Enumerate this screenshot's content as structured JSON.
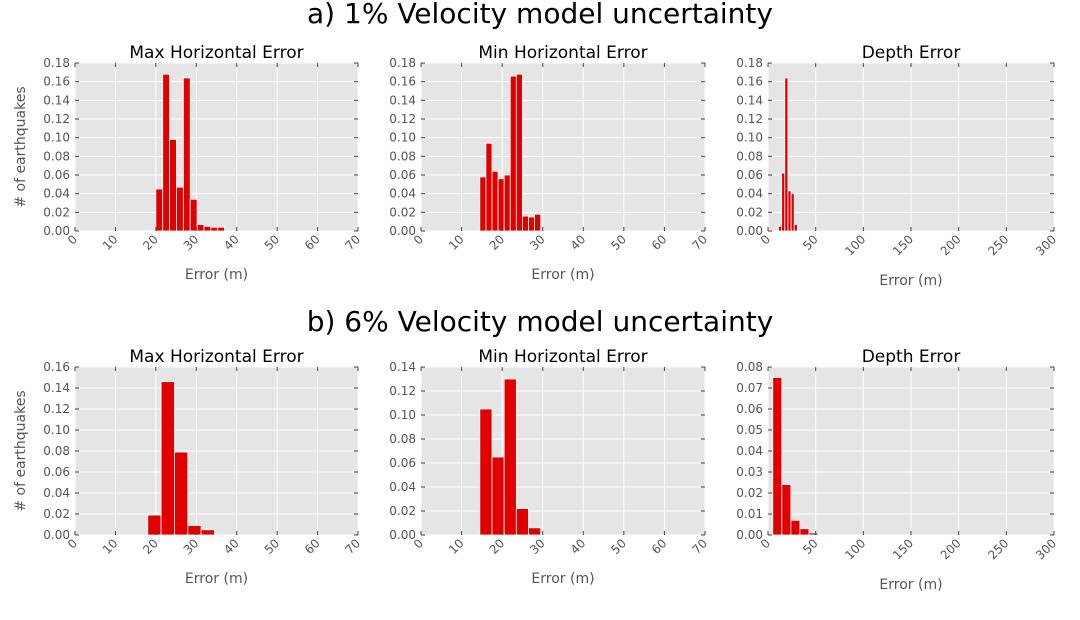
{
  "row_titles": [
    "a) 1% Velocity model uncertainty",
    "b) 6% Velocity model uncertainty"
  ],
  "ylabel": "# of earthquakes",
  "colors": {
    "bar": "#e00000",
    "bar_edge": "#ffffff",
    "panel_bg": "#e5e5e5",
    "grid": "#ffffff",
    "tick_text": "#555555"
  },
  "chart_data": [
    {
      "type": "bar",
      "row": 0,
      "col": 0,
      "title": "Max Horizontal Error",
      "xlabel": "Error (m)",
      "ylabel": "# of earthquakes",
      "xlim": [
        0,
        70
      ],
      "ylim": [
        0,
        0.18
      ],
      "xticks": [
        "0",
        "10",
        "20",
        "30",
        "40",
        "50",
        "60",
        "70"
      ],
      "yticks": [
        "0.00",
        "0.02",
        "0.04",
        "0.06",
        "0.08",
        "0.10",
        "0.12",
        "0.14",
        "0.16",
        "0.18"
      ],
      "bin_width": 1.7,
      "bins": [
        {
          "x": 20.0,
          "y": 0.045
        },
        {
          "x": 21.7,
          "y": 0.168
        },
        {
          "x": 23.4,
          "y": 0.098
        },
        {
          "x": 25.1,
          "y": 0.047
        },
        {
          "x": 26.8,
          "y": 0.164
        },
        {
          "x": 28.5,
          "y": 0.034
        },
        {
          "x": 30.2,
          "y": 0.007
        },
        {
          "x": 31.9,
          "y": 0.005
        },
        {
          "x": 33.6,
          "y": 0.004
        },
        {
          "x": 35.3,
          "y": 0.004
        }
      ]
    },
    {
      "type": "bar",
      "row": 0,
      "col": 1,
      "title": "Min Horizontal Error",
      "xlabel": "Error (m)",
      "xlim": [
        0,
        70
      ],
      "ylim": [
        0,
        0.18
      ],
      "xticks": [
        "0",
        "10",
        "20",
        "30",
        "40",
        "50",
        "60",
        "70"
      ],
      "yticks": [
        "0.00",
        "0.02",
        "0.04",
        "0.06",
        "0.08",
        "0.10",
        "0.12",
        "0.14",
        "0.16",
        "0.18"
      ],
      "bin_width": 1.5,
      "bins": [
        {
          "x": 14.5,
          "y": 0.058
        },
        {
          "x": 16.0,
          "y": 0.094
        },
        {
          "x": 17.5,
          "y": 0.064
        },
        {
          "x": 19.0,
          "y": 0.056
        },
        {
          "x": 20.5,
          "y": 0.06
        },
        {
          "x": 22.0,
          "y": 0.166
        },
        {
          "x": 23.5,
          "y": 0.168
        },
        {
          "x": 25.0,
          "y": 0.016
        },
        {
          "x": 26.5,
          "y": 0.015
        },
        {
          "x": 28.0,
          "y": 0.018
        }
      ]
    },
    {
      "type": "bar",
      "row": 0,
      "col": 2,
      "title": "Depth Error",
      "xlabel": "Error (m)",
      "xlim": [
        0,
        300
      ],
      "ylim": [
        0,
        0.18
      ],
      "xticks": [
        "0",
        "50",
        "100",
        "150",
        "200",
        "250",
        "300"
      ],
      "yticks": [
        "0.00",
        "0.02",
        "0.04",
        "0.06",
        "0.08",
        "0.10",
        "0.12",
        "0.14",
        "0.16",
        "0.18"
      ],
      "bin_width": 3.3,
      "bins": [
        {
          "x": 11.0,
          "y": 0.005
        },
        {
          "x": 14.3,
          "y": 0.062
        },
        {
          "x": 17.6,
          "y": 0.164
        },
        {
          "x": 20.9,
          "y": 0.043
        },
        {
          "x": 24.2,
          "y": 0.04
        },
        {
          "x": 27.5,
          "y": 0.007
        }
      ]
    },
    {
      "type": "bar",
      "row": 1,
      "col": 0,
      "title": "Max Horizontal Error",
      "xlabel": "Error (m)",
      "ylabel": "# of earthquakes",
      "xlim": [
        0,
        70
      ],
      "ylim": [
        0,
        0.16
      ],
      "xticks": [
        "0",
        "10",
        "20",
        "30",
        "40",
        "50",
        "60",
        "70"
      ],
      "yticks": [
        "0.00",
        "0.02",
        "0.04",
        "0.06",
        "0.08",
        "0.10",
        "0.12",
        "0.14",
        "0.16"
      ],
      "bin_width": 3.3,
      "bins": [
        {
          "x": 18.0,
          "y": 0.019
        },
        {
          "x": 21.3,
          "y": 0.146
        },
        {
          "x": 24.6,
          "y": 0.079
        },
        {
          "x": 27.9,
          "y": 0.009
        },
        {
          "x": 31.2,
          "y": 0.005
        }
      ]
    },
    {
      "type": "bar",
      "row": 1,
      "col": 1,
      "title": "Min Horizontal Error",
      "xlabel": "Error (m)",
      "xlim": [
        0,
        70
      ],
      "ylim": [
        0,
        0.14
      ],
      "xticks": [
        "0",
        "10",
        "20",
        "30",
        "40",
        "50",
        "60",
        "70"
      ],
      "yticks": [
        "0.00",
        "0.02",
        "0.04",
        "0.06",
        "0.08",
        "0.10",
        "0.12",
        "0.14"
      ],
      "bin_width": 3.0,
      "bins": [
        {
          "x": 14.5,
          "y": 0.105
        },
        {
          "x": 17.5,
          "y": 0.065
        },
        {
          "x": 20.5,
          "y": 0.13
        },
        {
          "x": 23.5,
          "y": 0.022
        },
        {
          "x": 26.5,
          "y": 0.006
        }
      ]
    },
    {
      "type": "bar",
      "row": 1,
      "col": 2,
      "title": "Depth Error",
      "xlabel": "Error (m)",
      "xlim": [
        0,
        300
      ],
      "ylim": [
        0,
        0.08
      ],
      "xticks": [
        "0",
        "50",
        "100",
        "150",
        "200",
        "250",
        "300"
      ],
      "yticks": [
        "0.00",
        "0.01",
        "0.02",
        "0.03",
        "0.04",
        "0.05",
        "0.06",
        "0.07",
        "0.08"
      ],
      "bin_width": 9.5,
      "bins": [
        {
          "x": 5.0,
          "y": 0.075
        },
        {
          "x": 14.5,
          "y": 0.024
        },
        {
          "x": 24.0,
          "y": 0.007
        },
        {
          "x": 33.5,
          "y": 0.003
        },
        {
          "x": 43.0,
          "y": 0.001
        }
      ]
    }
  ]
}
